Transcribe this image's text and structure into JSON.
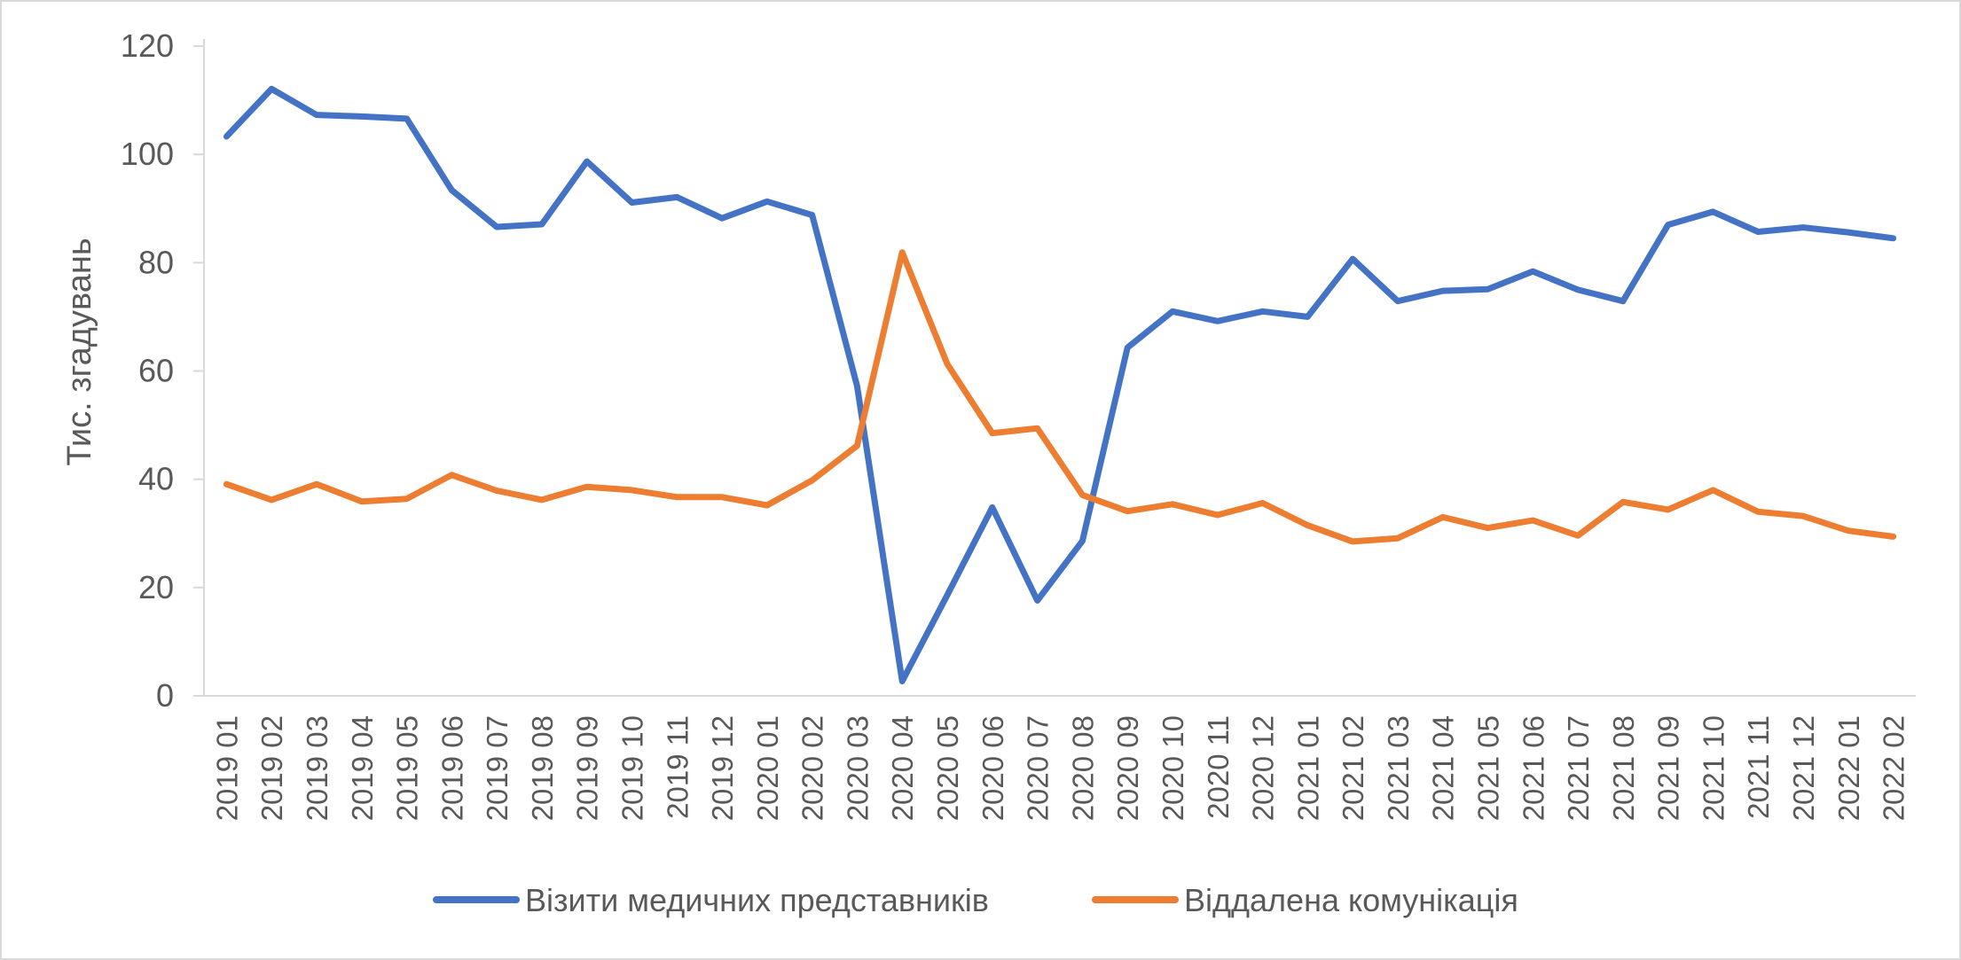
{
  "chart_data": {
    "type": "line",
    "ylabel": "Тис. згадувань",
    "ylim": [
      0,
      120
    ],
    "yticks": [
      0,
      20,
      40,
      60,
      80,
      100,
      120
    ],
    "grid": false,
    "legend_position": "bottom",
    "x": [
      "2019 01",
      "2019 02",
      "2019 03",
      "2019 04",
      "2019 05",
      "2019 06",
      "2019 07",
      "2019 08",
      "2019 09",
      "2019 10",
      "2019 11",
      "2019 12",
      "2020 01",
      "2020 02",
      "2020 03",
      "2020 04",
      "2020 05",
      "2020 06",
      "2020 07",
      "2020 08",
      "2020 09",
      "2020 10",
      "2020 11",
      "2020 12",
      "2021 01",
      "2021 02",
      "2021 03",
      "2021 04",
      "2021 05",
      "2021 06",
      "2021 07",
      "2021 08",
      "2021 09",
      "2021 10",
      "2021 11",
      "2021 12",
      "2022 01",
      "2022 02"
    ],
    "series": [
      {
        "name": "Візити медичних представників",
        "color": "#4472c4",
        "values": [
          103.3,
          112.1,
          107.3,
          107.0,
          106.6,
          93.4,
          86.6,
          87.1,
          98.7,
          91.1,
          92.1,
          88.2,
          91.3,
          88.8,
          57.2,
          2.7,
          18.6,
          34.8,
          17.6,
          28.6,
          64.3,
          71.0,
          69.2,
          71.0,
          70.0,
          80.7,
          72.9,
          74.8,
          75.1,
          78.4,
          75.0,
          72.9,
          87.0,
          89.4,
          85.7,
          86.5,
          85.6,
          84.5
        ]
      },
      {
        "name": "Віддалена комунікація",
        "color": "#ed7d31",
        "values": [
          39.1,
          36.2,
          39.1,
          35.9,
          36.4,
          40.8,
          37.9,
          36.2,
          38.6,
          38.0,
          36.7,
          36.7,
          35.2,
          39.8,
          46.2,
          81.9,
          61.3,
          48.5,
          49.4,
          37.1,
          34.1,
          35.4,
          33.4,
          35.6,
          31.5,
          28.5,
          29.1,
          33.0,
          31.0,
          32.4,
          29.6,
          35.8,
          34.4,
          38.0,
          34.0,
          33.2,
          30.5,
          29.4
        ]
      }
    ]
  }
}
